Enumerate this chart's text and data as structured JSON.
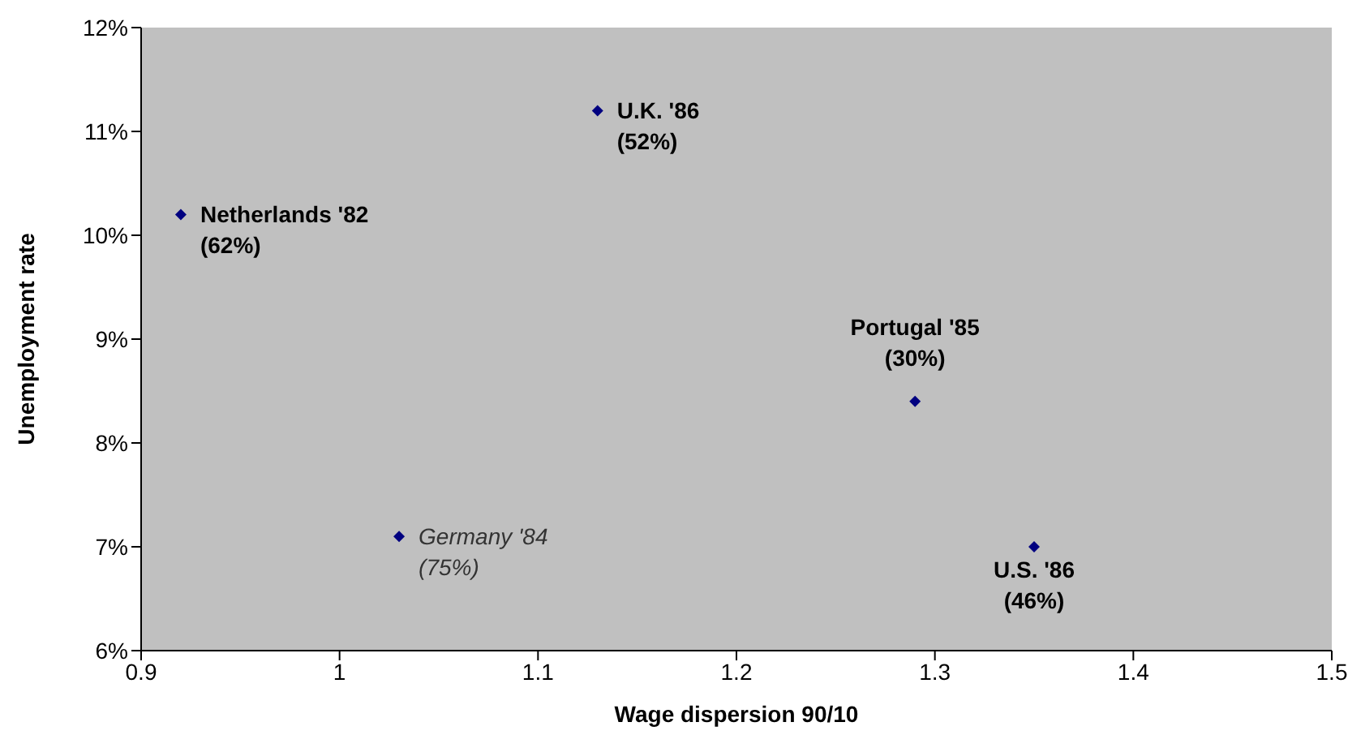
{
  "chart_data": {
    "type": "scatter",
    "xlabel": "Wage dispersion 90/10",
    "ylabel": "Unemployment rate",
    "x": [
      0.92,
      1.13,
      1.29,
      1.35,
      1.03
    ],
    "series": [
      {
        "color": "#000080",
        "values": [
          10.2,
          11.2,
          8.4,
          7.0,
          7.1
        ]
      }
    ],
    "marker": "diamond",
    "xlim": [
      0.9,
      1.5
    ],
    "xticks": [
      0.9,
      1,
      1.1,
      1.2,
      1.3,
      1.4,
      1.5
    ],
    "ylim": [
      6,
      12
    ],
    "yticks": [
      {
        "value": 6,
        "label": "6%"
      },
      {
        "value": 7,
        "label": "7%"
      },
      {
        "value": 8,
        "label": "8%"
      },
      {
        "value": 9,
        "label": "9%"
      },
      {
        "value": 10,
        "label": "10%"
      },
      {
        "value": 11,
        "label": "11%"
      },
      {
        "value": 12,
        "label": "12%"
      }
    ],
    "grid": false,
    "annotations": [
      {
        "text": "Netherlands '82\n(62%)",
        "x": 0.92,
        "y": 10.2
      },
      {
        "text": "U.K. '86\n(52%)",
        "x": 1.13,
        "y": 11.2
      },
      {
        "text": "Portugal '85\n(30%)",
        "x": 1.29,
        "y": 8.4
      },
      {
        "text": "U.S. '86\n(46%)",
        "x": 1.35,
        "y": 7.0
      },
      {
        "text": "Germany '84\n(75%)",
        "x": 1.03,
        "y": 7.1
      }
    ]
  }
}
